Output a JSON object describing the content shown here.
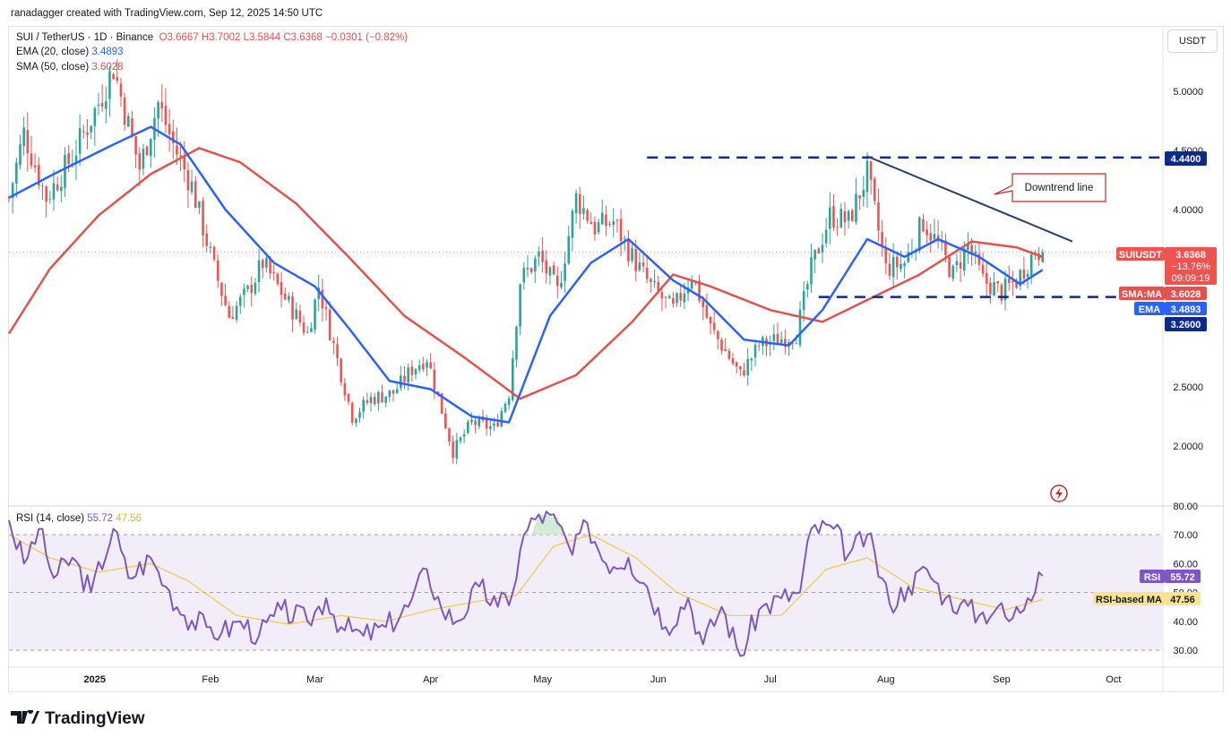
{
  "header": {
    "attribution": "ranadagger created with TradingView.com, Sep 12, 2025 14:50 UTC"
  },
  "legend": {
    "symbol": "SUI / TetherUS · 1D · Binance",
    "ohlc": "O3.6667 H3.7002 L3.5844 C3.6368 −0.0301 (−0.82%)",
    "ema_label": "EMA (20, close)",
    "ema_value": "3.4893",
    "sma_label": "SMA (50, close)",
    "sma_value": "3.6028",
    "rsi_label": "RSI (14, close)",
    "rsi_value": "55.72",
    "rsi_ma_value": "47.56"
  },
  "currency_button": "USDT",
  "brand": "TradingView",
  "colors": {
    "up": "#26a69a",
    "down": "#ef5350",
    "ema": "#2962ff",
    "sma": "#e0534f",
    "trend": "#2a3f6b",
    "level": "#0d2a8a",
    "rsi": "#7e57c2",
    "rsi_ma": "#f2c744"
  },
  "chart_data": [
    {
      "type": "candlestick",
      "symbol": "SUIUSDT",
      "ylim": [
        1.65,
        5.45
      ],
      "yticks": [
        "5.0000",
        "4.5000",
        "4.0000",
        "2.5000",
        "2.0000"
      ],
      "xticks": [
        "2025",
        "Feb",
        "Mar",
        "Apr",
        "May",
        "Jun",
        "Jul",
        "Aug",
        "Sep",
        "Oct"
      ],
      "levels": [
        {
          "value": 4.44,
          "label": "4.4400"
        },
        {
          "value": 3.26,
          "label": "3.2600"
        }
      ],
      "trendline": {
        "from": [
          "2025-07-27",
          4.45
        ],
        "to": [
          "2025-09-20",
          3.73
        ]
      },
      "annotation": "Downtrend line",
      "price_tag": {
        "symbol": "SUIUSDT",
        "price": "3.6368",
        "change": "−13.76%",
        "countdown": "09:09:19"
      },
      "sma_tag": {
        "label": "SMA:MA",
        "value": "3.6028"
      },
      "ema_tag": {
        "label": "EMA",
        "value": "3.4893"
      },
      "close_path": [
        [
          "2024-12-09",
          4.1
        ],
        [
          "2024-12-13",
          4.65
        ],
        [
          "2024-12-19",
          4.1
        ],
        [
          "2024-12-26",
          4.45
        ],
        [
          "2025-01-02",
          4.9
        ],
        [
          "2025-01-06",
          5.2
        ],
        [
          "2025-01-13",
          4.35
        ],
        [
          "2025-01-18",
          4.9
        ],
        [
          "2025-01-22",
          4.55
        ],
        [
          "2025-01-27",
          4.2
        ],
        [
          "2025-02-02",
          3.5
        ],
        [
          "2025-02-06",
          3.1
        ],
        [
          "2025-02-11",
          3.3
        ],
        [
          "2025-02-15",
          3.55
        ],
        [
          "2025-02-22",
          3.2
        ],
        [
          "2025-02-27",
          2.95
        ],
        [
          "2025-03-02",
          3.35
        ],
        [
          "2025-03-06",
          2.85
        ],
        [
          "2025-03-11",
          2.25
        ],
        [
          "2025-03-16",
          2.4
        ],
        [
          "2025-03-22",
          2.45
        ],
        [
          "2025-03-27",
          2.65
        ],
        [
          "2025-03-31",
          2.75
        ],
        [
          "2025-04-04",
          2.3
        ],
        [
          "2025-04-07",
          1.95
        ],
        [
          "2025-04-12",
          2.2
        ],
        [
          "2025-04-18",
          2.15
        ],
        [
          "2025-04-22",
          2.45
        ],
        [
          "2025-04-25",
          3.4
        ],
        [
          "2025-04-30",
          3.6
        ],
        [
          "2025-05-05",
          3.3
        ],
        [
          "2025-05-10",
          4.1
        ],
        [
          "2025-05-15",
          3.85
        ],
        [
          "2025-05-20",
          3.9
        ],
        [
          "2025-05-25",
          3.6
        ],
        [
          "2025-05-30",
          3.35
        ],
        [
          "2025-06-05",
          3.15
        ],
        [
          "2025-06-10",
          3.45
        ],
        [
          "2025-06-15",
          3.0
        ],
        [
          "2025-06-20",
          2.75
        ],
        [
          "2025-06-23",
          2.6
        ],
        [
          "2025-06-28",
          2.85
        ],
        [
          "2025-07-03",
          2.9
        ],
        [
          "2025-07-08",
          2.95
        ],
        [
          "2025-07-12",
          3.5
        ],
        [
          "2025-07-17",
          3.95
        ],
        [
          "2025-07-22",
          3.9
        ],
        [
          "2025-07-27",
          4.3
        ],
        [
          "2025-08-01",
          3.5
        ],
        [
          "2025-08-06",
          3.55
        ],
        [
          "2025-08-11",
          3.9
        ],
        [
          "2025-08-15",
          3.7
        ],
        [
          "2025-08-19",
          3.45
        ],
        [
          "2025-08-23",
          3.7
        ],
        [
          "2025-08-27",
          3.4
        ],
        [
          "2025-09-01",
          3.3
        ],
        [
          "2025-09-05",
          3.4
        ],
        [
          "2025-09-10",
          3.65
        ],
        [
          "2025-09-12",
          3.64
        ]
      ],
      "ema20_path": [
        [
          "2024-12-09",
          4.1
        ],
        [
          "2024-12-21",
          4.3
        ],
        [
          "2025-01-06",
          4.55
        ],
        [
          "2025-01-16",
          4.7
        ],
        [
          "2025-01-24",
          4.55
        ],
        [
          "2025-02-05",
          4.0
        ],
        [
          "2025-02-18",
          3.55
        ],
        [
          "2025-03-01",
          3.35
        ],
        [
          "2025-03-10",
          3.0
        ],
        [
          "2025-03-21",
          2.55
        ],
        [
          "2025-04-01",
          2.48
        ],
        [
          "2025-04-12",
          2.25
        ],
        [
          "2025-04-22",
          2.2
        ],
        [
          "2025-05-03",
          3.1
        ],
        [
          "2025-05-14",
          3.55
        ],
        [
          "2025-05-24",
          3.75
        ],
        [
          "2025-06-05",
          3.4
        ],
        [
          "2025-06-13",
          3.25
        ],
        [
          "2025-06-24",
          2.9
        ],
        [
          "2025-07-06",
          2.85
        ],
        [
          "2025-07-15",
          3.15
        ],
        [
          "2025-07-27",
          3.75
        ],
        [
          "2025-08-06",
          3.6
        ],
        [
          "2025-08-15",
          3.75
        ],
        [
          "2025-08-26",
          3.6
        ],
        [
          "2025-09-06",
          3.37
        ],
        [
          "2025-09-12",
          3.49
        ]
      ],
      "sma50_path": [
        [
          "2024-12-09",
          2.95
        ],
        [
          "2024-12-20",
          3.5
        ],
        [
          "2025-01-02",
          3.95
        ],
        [
          "2025-01-16",
          4.3
        ],
        [
          "2025-01-29",
          4.52
        ],
        [
          "2025-02-09",
          4.4
        ],
        [
          "2025-02-24",
          4.05
        ],
        [
          "2025-03-10",
          3.6
        ],
        [
          "2025-03-25",
          3.1
        ],
        [
          "2025-04-10",
          2.75
        ],
        [
          "2025-04-25",
          2.4
        ],
        [
          "2025-05-10",
          2.6
        ],
        [
          "2025-05-25",
          3.05
        ],
        [
          "2025-06-05",
          3.45
        ],
        [
          "2025-06-15",
          3.35
        ],
        [
          "2025-07-01",
          3.15
        ],
        [
          "2025-07-15",
          3.05
        ],
        [
          "2025-07-28",
          3.25
        ],
        [
          "2025-08-10",
          3.45
        ],
        [
          "2025-08-24",
          3.73
        ],
        [
          "2025-09-05",
          3.68
        ],
        [
          "2025-09-12",
          3.6
        ]
      ]
    },
    {
      "type": "line",
      "title": "RSI (14, close)",
      "ylim": [
        26,
        81
      ],
      "yticks": [
        "80.00",
        "70.00",
        "60.00",
        "50.00",
        "40.00",
        "30.00"
      ],
      "band": [
        30,
        70
      ],
      "midline": 50,
      "rsi_tag": {
        "label": "RSI",
        "value": "55.72"
      },
      "rsi_ma_tag": {
        "label": "RSI-based MA",
        "value": "47.56"
      },
      "series": [
        {
          "values": [
            [
              "2024-12-09",
              75
            ],
            [
              "2024-12-13",
              60
            ],
            [
              "2024-12-17",
              72
            ],
            [
              "2024-12-21",
              55
            ],
            [
              "2024-12-26",
              62
            ],
            [
              "2024-12-31",
              50
            ],
            [
              "2025-01-06",
              72
            ],
            [
              "2025-01-10",
              55
            ],
            [
              "2025-01-16",
              62
            ],
            [
              "2025-01-20",
              52
            ],
            [
              "2025-01-25",
              42
            ],
            [
              "2025-01-31",
              38
            ],
            [
              "2025-02-04",
              36
            ],
            [
              "2025-02-09",
              40
            ],
            [
              "2025-02-14",
              35
            ],
            [
              "2025-02-20",
              44
            ],
            [
              "2025-02-27",
              40
            ],
            [
              "2025-03-04",
              48
            ],
            [
              "2025-03-08",
              38
            ],
            [
              "2025-03-14",
              35
            ],
            [
              "2025-03-20",
              38
            ],
            [
              "2025-03-26",
              45
            ],
            [
              "2025-03-31",
              58
            ],
            [
              "2025-04-04",
              44
            ],
            [
              "2025-04-08",
              40
            ],
            [
              "2025-04-14",
              52
            ],
            [
              "2025-04-19",
              45
            ],
            [
              "2025-04-23",
              50
            ],
            [
              "2025-04-26",
              70
            ],
            [
              "2025-04-30",
              77
            ],
            [
              "2025-05-05",
              74
            ],
            [
              "2025-05-09",
              63
            ],
            [
              "2025-05-13",
              74
            ],
            [
              "2025-05-18",
              60
            ],
            [
              "2025-05-24",
              62
            ],
            [
              "2025-05-29",
              52
            ],
            [
              "2025-06-03",
              38
            ],
            [
              "2025-06-09",
              48
            ],
            [
              "2025-06-13",
              32
            ],
            [
              "2025-06-18",
              45
            ],
            [
              "2025-06-23",
              28
            ],
            [
              "2025-06-28",
              44
            ],
            [
              "2025-07-04",
              48
            ],
            [
              "2025-07-09",
              50
            ],
            [
              "2025-07-12",
              72
            ],
            [
              "2025-07-18",
              72
            ],
            [
              "2025-07-22",
              63
            ],
            [
              "2025-07-27",
              70
            ],
            [
              "2025-08-02",
              46
            ],
            [
              "2025-08-07",
              52
            ],
            [
              "2025-08-12",
              58
            ],
            [
              "2025-08-17",
              48
            ],
            [
              "2025-08-21",
              46
            ],
            [
              "2025-08-26",
              42
            ],
            [
              "2025-08-31",
              45
            ],
            [
              "2025-09-03",
              40
            ],
            [
              "2025-09-08",
              48
            ],
            [
              "2025-09-11",
              57
            ],
            [
              "2025-09-12",
              55.72
            ]
          ]
        },
        {
          "values": [
            [
              "2024-12-09",
              70
            ],
            [
              "2024-12-20",
              62
            ],
            [
              "2025-01-02",
              57
            ],
            [
              "2025-01-16",
              60
            ],
            [
              "2025-01-26",
              54
            ],
            [
              "2025-02-08",
              42
            ],
            [
              "2025-02-22",
              39
            ],
            [
              "2025-03-08",
              42
            ],
            [
              "2025-03-20",
              40
            ],
            [
              "2025-04-01",
              44
            ],
            [
              "2025-04-14",
              47
            ],
            [
              "2025-04-24",
              49
            ],
            [
              "2025-05-04",
              66
            ],
            [
              "2025-05-14",
              70
            ],
            [
              "2025-05-26",
              62
            ],
            [
              "2025-06-06",
              50
            ],
            [
              "2025-06-20",
              42
            ],
            [
              "2025-07-04",
              42
            ],
            [
              "2025-07-16",
              58
            ],
            [
              "2025-07-27",
              62
            ],
            [
              "2025-08-08",
              52
            ],
            [
              "2025-08-20",
              48
            ],
            [
              "2025-09-02",
              44
            ],
            [
              "2025-09-12",
              47.56
            ]
          ]
        }
      ]
    }
  ]
}
